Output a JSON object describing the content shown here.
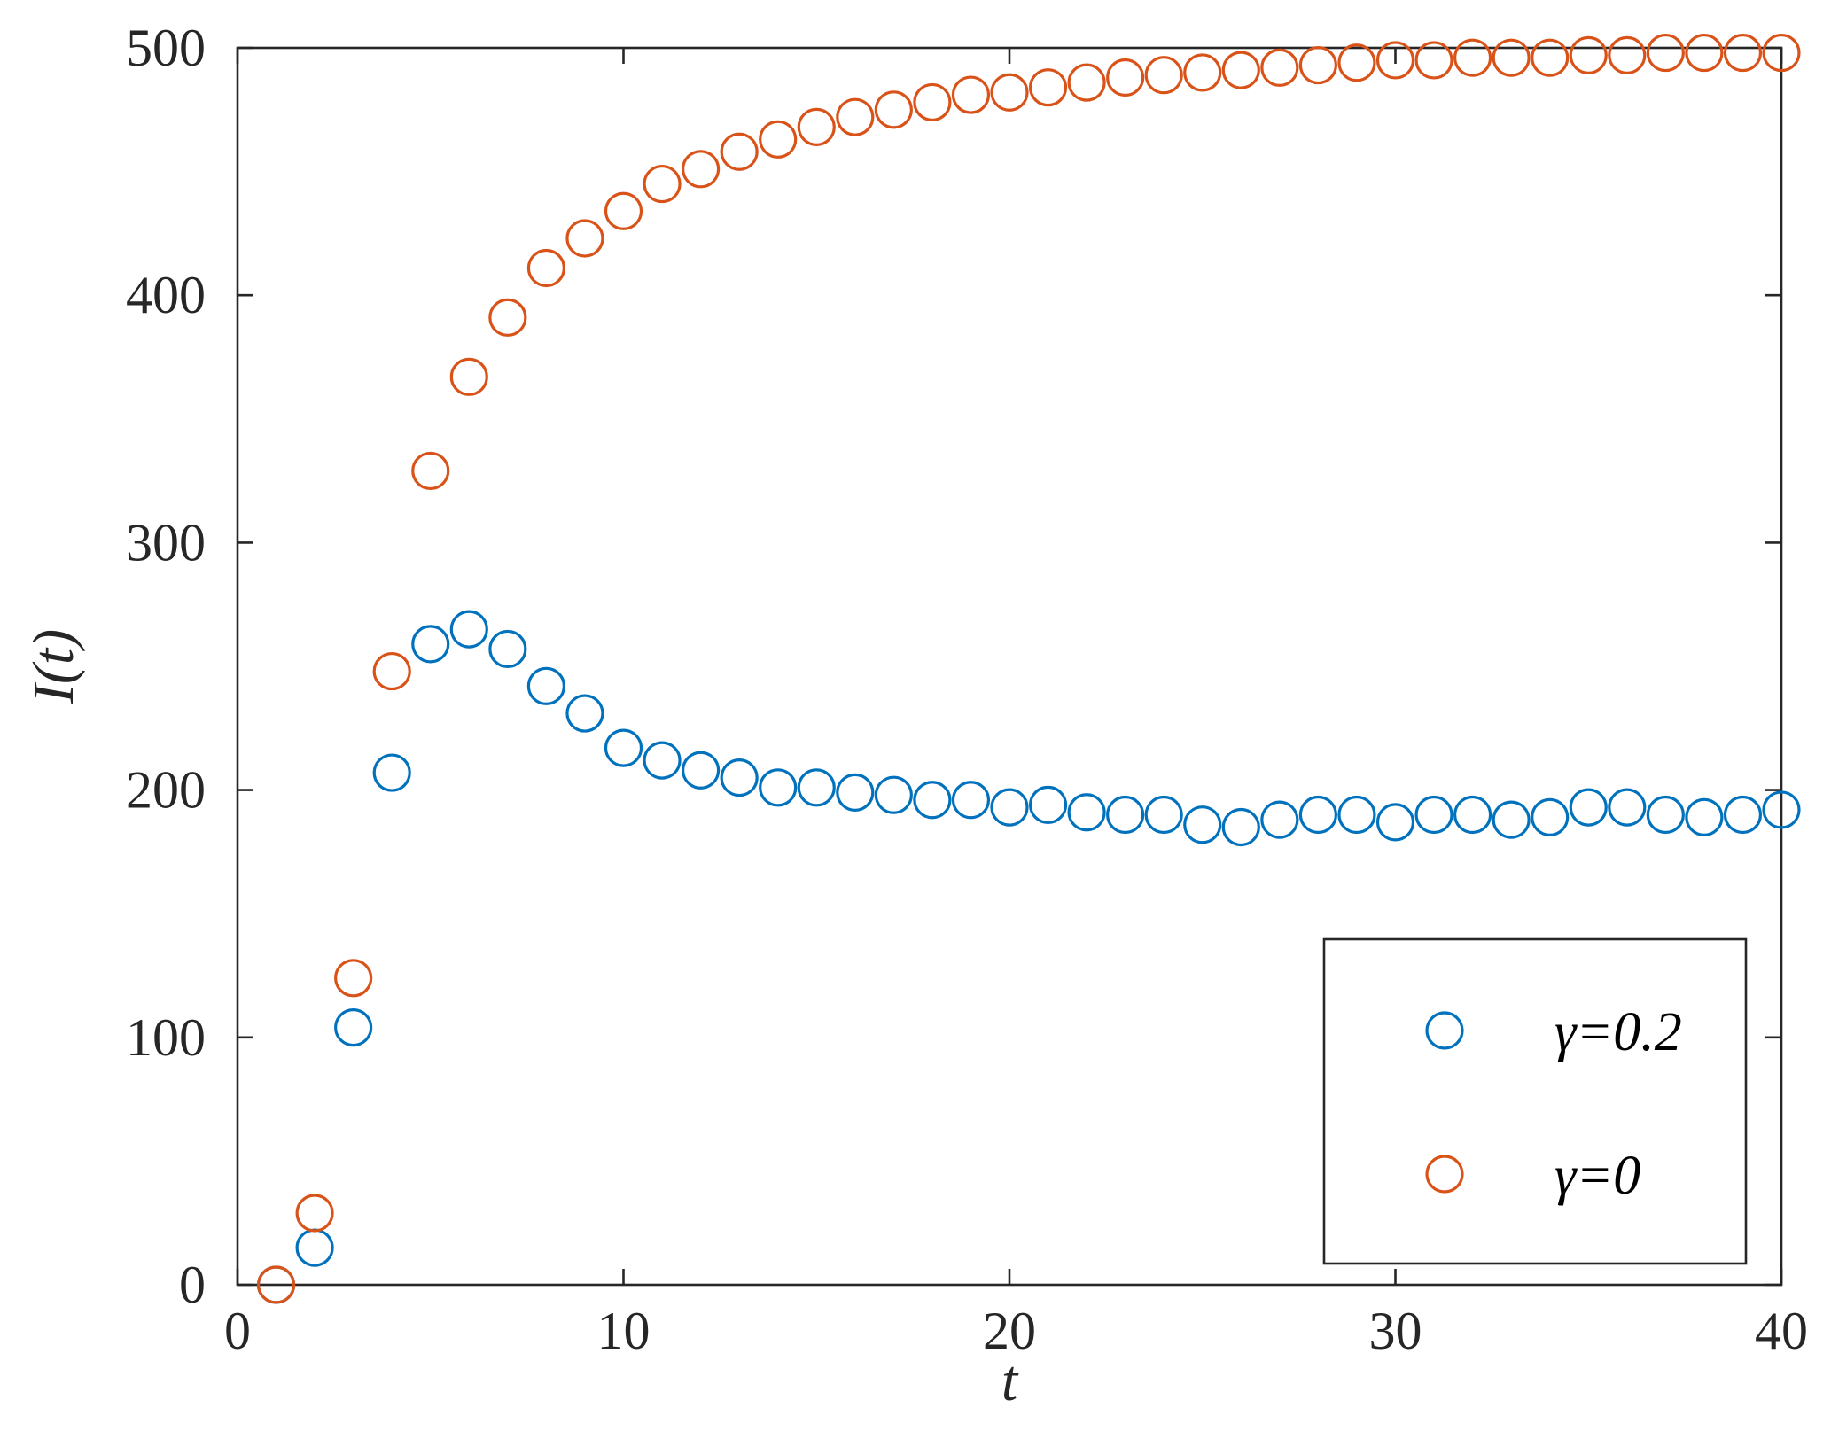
{
  "chart_data": {
    "type": "scatter",
    "xlabel": "t",
    "ylabel": "I(t)",
    "xlim": [
      0,
      40
    ],
    "ylim": [
      0,
      500
    ],
    "x_ticks": [
      0,
      10,
      20,
      30,
      40
    ],
    "y_ticks": [
      0,
      100,
      200,
      300,
      400,
      500
    ],
    "grid": false,
    "legend_position": "bottom-right",
    "series": [
      {
        "name": "γ=0.2",
        "color": "#0072BD",
        "marker": "open-circle",
        "x": [
          1,
          2,
          3,
          4,
          5,
          6,
          7,
          8,
          9,
          10,
          11,
          12,
          13,
          14,
          15,
          16,
          17,
          18,
          19,
          20,
          21,
          22,
          23,
          24,
          25,
          26,
          27,
          28,
          29,
          30,
          31,
          32,
          33,
          34,
          35,
          36,
          37,
          38,
          39,
          40
        ],
        "y": [
          0,
          15,
          104,
          207,
          259,
          265,
          257,
          242,
          231,
          217,
          212,
          208,
          205,
          201,
          201,
          199,
          198,
          196,
          196,
          193,
          194,
          191,
          190,
          190,
          186,
          185,
          188,
          190,
          190,
          187,
          190,
          190,
          188,
          189,
          193,
          193,
          190,
          189,
          190,
          192
        ]
      },
      {
        "name": "γ=0",
        "color": "#D95319",
        "marker": "open-circle",
        "x": [
          1,
          2,
          3,
          4,
          5,
          6,
          7,
          8,
          9,
          10,
          11,
          12,
          13,
          14,
          15,
          16,
          17,
          18,
          19,
          20,
          21,
          22,
          23,
          24,
          25,
          26,
          27,
          28,
          29,
          30,
          31,
          32,
          33,
          34,
          35,
          36,
          37,
          38,
          39,
          40
        ],
        "y": [
          0,
          29,
          124,
          248,
          329,
          367,
          391,
          411,
          423,
          434,
          445,
          451,
          458,
          463,
          468,
          472,
          475,
          478,
          481,
          482,
          484,
          486,
          488,
          489,
          490,
          491,
          492,
          493,
          494,
          495,
          495,
          496,
          496,
          496,
          497,
          497,
          498,
          498,
          498,
          498
        ]
      }
    ]
  }
}
